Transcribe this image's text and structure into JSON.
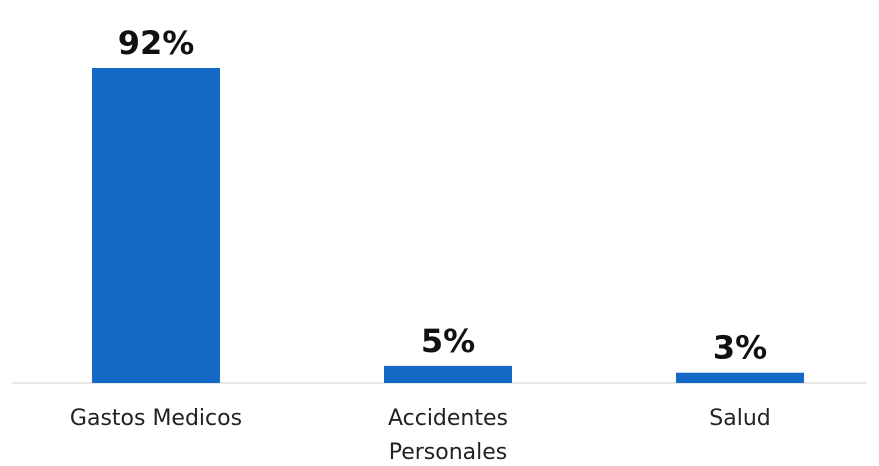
{
  "chart_data": {
    "type": "bar",
    "categories": [
      "Gastos Medicos",
      "Accidentes Personales",
      "Salud"
    ],
    "category_lines": [
      [
        "Gastos Medicos"
      ],
      [
        "Accidentes",
        "Personales"
      ],
      [
        "Salud"
      ]
    ],
    "values": [
      92,
      5,
      3
    ],
    "data_labels": [
      "92%",
      "5%",
      "3%"
    ],
    "ylim": [
      0,
      92
    ],
    "bar_color": "#1469c7",
    "axis_color": "#d0d0d0",
    "grid": false,
    "legend": "none",
    "y_axis_visible": false
  }
}
